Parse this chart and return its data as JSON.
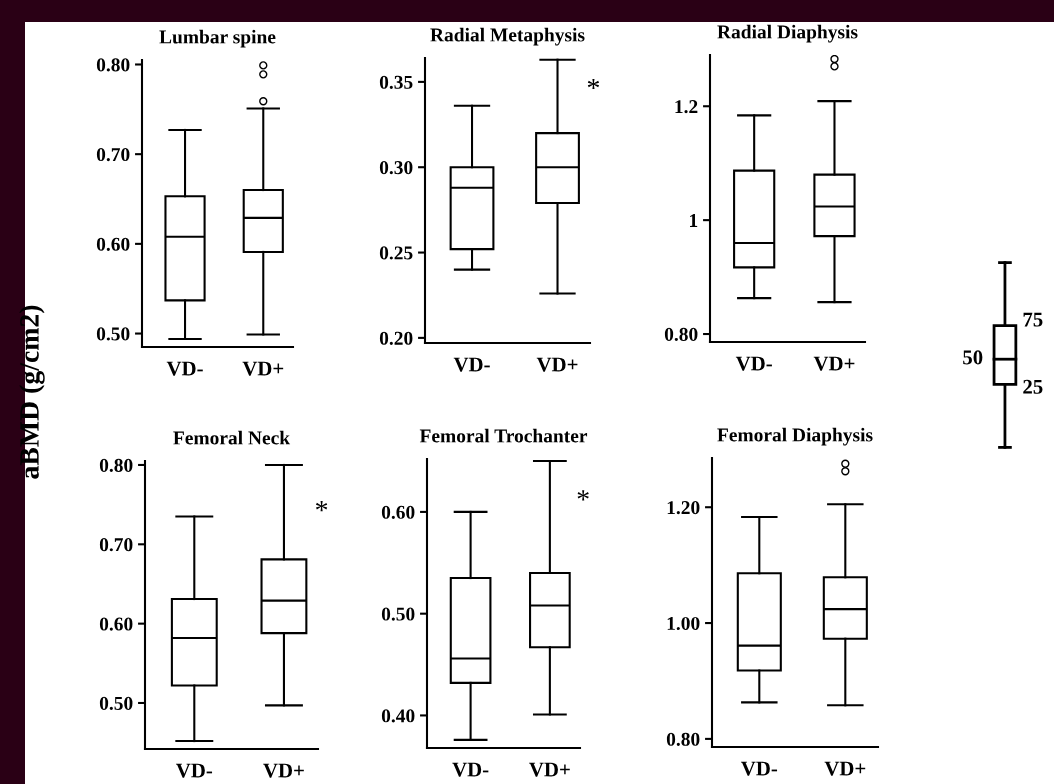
{
  "chart_data": [
    {
      "type": "box",
      "title": "Lumbar spine",
      "ylabel": "aBMD (g/cm2)",
      "categories": [
        "VD-",
        "VD+"
      ],
      "ylim": [
        0.485,
        0.805
      ],
      "yticks": [
        {
          "value": 0.5,
          "label": "0.50"
        },
        {
          "value": 0.6,
          "label": "0.60"
        },
        {
          "value": 0.7,
          "label": "0.70"
        },
        {
          "value": 0.8,
          "label": "0.80"
        }
      ],
      "boxes": [
        {
          "low": 0.494,
          "q1": 0.537,
          "median": 0.608,
          "q3": 0.653,
          "high": 0.727
        },
        {
          "low": 0.499,
          "q1": 0.591,
          "median": 0.629,
          "q3": 0.66,
          "high": 0.751,
          "outliers": [
            0.759,
            0.789,
            0.799
          ]
        }
      ]
    },
    {
      "type": "box",
      "title": "Radial Metaphysis",
      "categories": [
        "VD-",
        "VD+"
      ],
      "ylim": [
        0.197,
        0.364
      ],
      "yticks": [
        {
          "value": 0.2,
          "label": "0.20"
        },
        {
          "value": 0.25,
          "label": "0.25"
        },
        {
          "value": 0.3,
          "label": "0.30"
        },
        {
          "value": 0.35,
          "label": "0.35"
        }
      ],
      "boxes": [
        {
          "low": 0.24,
          "q1": 0.252,
          "median": 0.288,
          "q3": 0.3,
          "high": 0.336
        },
        {
          "low": 0.226,
          "q1": 0.279,
          "median": 0.3,
          "q3": 0.32,
          "high": 0.363
        }
      ],
      "annotations": [
        {
          "text": "*",
          "x": "VD+",
          "y": 0.345
        }
      ]
    },
    {
      "type": "box",
      "title": "Radial Diaphysis",
      "categories": [
        "VD-",
        "VD+"
      ],
      "ylim": [
        0.786,
        1.29
      ],
      "yticks": [
        {
          "value": 0.8,
          "label": "0.80"
        },
        {
          "value": 1.0,
          "label": "1"
        },
        {
          "value": 1.2,
          "label": "1.2"
        }
      ],
      "boxes": [
        {
          "low": 0.863,
          "q1": 0.917,
          "median": 0.96,
          "q3": 1.087,
          "high": 1.184
        },
        {
          "low": 0.856,
          "q1": 0.972,
          "median": 1.024,
          "q3": 1.08,
          "high": 1.209,
          "outliers": [
            1.27,
            1.283
          ]
        }
      ]
    },
    {
      "type": "box",
      "title": "Femoral Neck",
      "categories": [
        "VD-",
        "VD+"
      ],
      "ylim": [
        0.442,
        0.805
      ],
      "yticks": [
        {
          "value": 0.5,
          "label": "0.50"
        },
        {
          "value": 0.6,
          "label": "0.60"
        },
        {
          "value": 0.7,
          "label": "0.70"
        },
        {
          "value": 0.8,
          "label": "0.80"
        }
      ],
      "boxes": [
        {
          "low": 0.452,
          "q1": 0.522,
          "median": 0.582,
          "q3": 0.631,
          "high": 0.735
        },
        {
          "low": 0.497,
          "q1": 0.588,
          "median": 0.629,
          "q3": 0.681,
          "high": 0.8
        }
      ],
      "annotations": [
        {
          "text": "*",
          "x": "VD+",
          "y": 0.74
        }
      ]
    },
    {
      "type": "box",
      "title": "Femoral Trochanter",
      "categories": [
        "VD-",
        "VD+"
      ],
      "ylim": [
        0.368,
        0.652
      ],
      "yticks": [
        {
          "value": 0.4,
          "label": "0.40"
        },
        {
          "value": 0.5,
          "label": "0.50"
        },
        {
          "value": 0.6,
          "label": "0.60"
        }
      ],
      "boxes": [
        {
          "low": 0.376,
          "q1": 0.432,
          "median": 0.456,
          "q3": 0.535,
          "high": 0.6
        },
        {
          "low": 0.401,
          "q1": 0.467,
          "median": 0.508,
          "q3": 0.54,
          "high": 0.65
        }
      ],
      "annotations": [
        {
          "text": "*",
          "x": "VD+",
          "y": 0.61
        }
      ]
    },
    {
      "type": "box",
      "title": "Femoral Diaphysis",
      "categories": [
        "VD-",
        "VD+"
      ],
      "ylim": [
        0.786,
        1.285
      ],
      "yticks": [
        {
          "value": 0.8,
          "label": "0.80"
        },
        {
          "value": 1.0,
          "label": "1.00"
        },
        {
          "value": 1.2,
          "label": "1.20"
        }
      ],
      "boxes": [
        {
          "low": 0.863,
          "q1": 0.918,
          "median": 0.961,
          "q3": 1.086,
          "high": 1.183
        },
        {
          "low": 0.858,
          "q1": 0.973,
          "median": 1.024,
          "q3": 1.079,
          "high": 1.205,
          "outliers": [
            1.262,
            1.275
          ]
        }
      ]
    },
    {
      "type": "other",
      "annotations": [
        "75",
        "50",
        "25"
      ]
    }
  ]
}
